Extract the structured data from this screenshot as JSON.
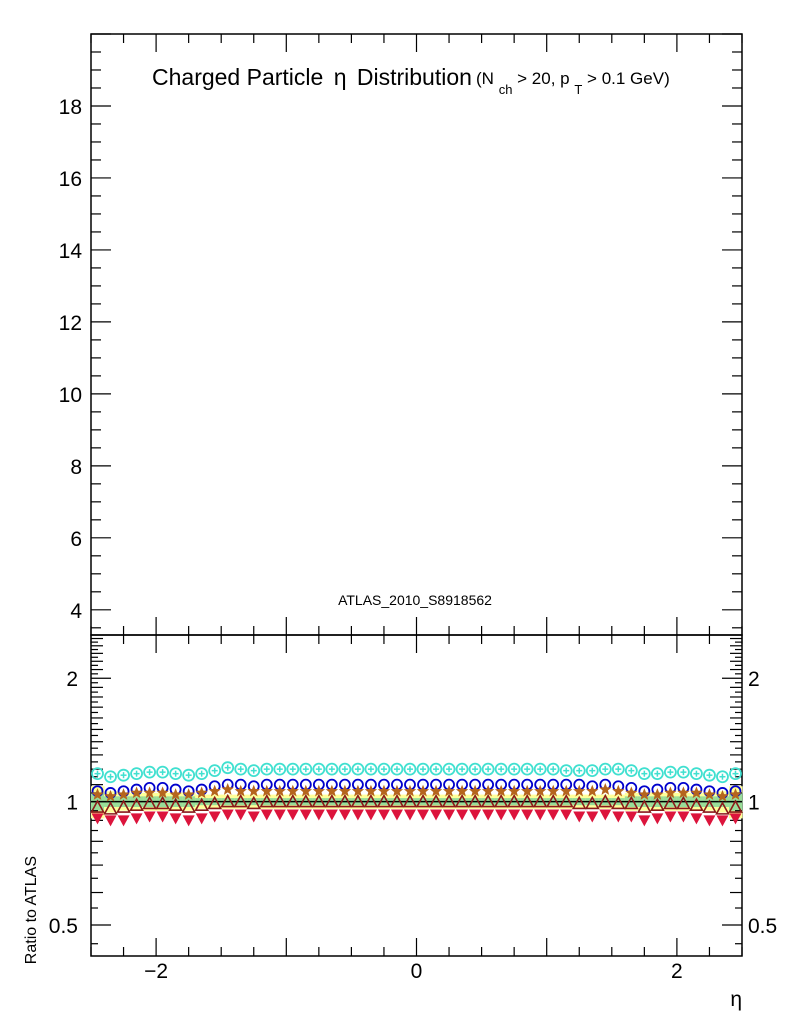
{
  "chart_data": [
    {
      "type": "scatter",
      "panel": "main",
      "title": "Charged Particle",
      "title_symbol": "η",
      "title_rest": "Distribution",
      "title_cut_open": "(N",
      "title_cut_sub1": "ch",
      "title_cut_mid": " > 20, p",
      "title_cut_sub2": "T",
      "title_cut_close": " > 0.1 GeV)",
      "annotation": "ATLAS_2010_S8918562",
      "xlim": [
        -2.5,
        2.5
      ],
      "ylim": [
        3.3,
        20.0
      ],
      "ytick_labels": [
        "4",
        "6",
        "8",
        "10",
        "12",
        "14",
        "16",
        "18"
      ],
      "ytick_values": [
        4,
        6,
        8,
        10,
        12,
        14,
        16,
        18
      ]
    },
    {
      "type": "scatter",
      "panel": "ratio",
      "ylabel": "Ratio to ATLAS",
      "xlabel": "η",
      "ylog": true,
      "xlim": [
        -2.5,
        2.5
      ],
      "ylim": [
        0.42,
        2.55
      ],
      "xtick_labels": [
        "−2",
        "0",
        "2"
      ],
      "xtick_values": [
        -2,
        0,
        2
      ],
      "ytick_labels": [
        "0.5",
        "1",
        "2"
      ],
      "ytick_values": [
        0.5,
        1,
        2
      ],
      "x": [
        -2.45,
        -2.35,
        -2.25,
        -2.15,
        -2.05,
        -1.95,
        -1.85,
        -1.75,
        -1.65,
        -1.55,
        -1.45,
        -1.35,
        -1.25,
        -1.15,
        -1.05,
        -0.95,
        -0.85,
        -0.75,
        -0.65,
        -0.55,
        -0.45,
        -0.35,
        -0.25,
        -0.15,
        -0.05,
        0.05,
        0.15,
        0.25,
        0.35,
        0.45,
        0.55,
        0.65,
        0.75,
        0.85,
        0.95,
        1.05,
        1.15,
        1.25,
        1.35,
        1.45,
        1.55,
        1.65,
        1.75,
        1.85,
        1.95,
        2.05,
        2.15,
        2.25,
        2.35,
        2.45
      ],
      "band": {
        "color": "#ffff99",
        "inner_color": "#99dd99",
        "outer_half_width": [
          0.09,
          0.06,
          0.05,
          0.05,
          0.05,
          0.05,
          0.05,
          0.05,
          0.04,
          0.04,
          0.04,
          0.04,
          0.04,
          0.04,
          0.04,
          0.04,
          0.04,
          0.04,
          0.04,
          0.04,
          0.04,
          0.04,
          0.04,
          0.04,
          0.04,
          0.04,
          0.04,
          0.04,
          0.04,
          0.04,
          0.04,
          0.04,
          0.04,
          0.04,
          0.04,
          0.04,
          0.04,
          0.04,
          0.04,
          0.04,
          0.04,
          0.05,
          0.05,
          0.05,
          0.05,
          0.05,
          0.05,
          0.05,
          0.06,
          0.09
        ],
        "inner_half_width": [
          0.05,
          0.03,
          0.03,
          0.03,
          0.03,
          0.03,
          0.03,
          0.03,
          0.02,
          0.02,
          0.02,
          0.02,
          0.02,
          0.02,
          0.02,
          0.02,
          0.02,
          0.02,
          0.02,
          0.02,
          0.02,
          0.02,
          0.02,
          0.02,
          0.02,
          0.02,
          0.02,
          0.02,
          0.02,
          0.02,
          0.02,
          0.02,
          0.02,
          0.02,
          0.02,
          0.02,
          0.02,
          0.02,
          0.02,
          0.02,
          0.02,
          0.03,
          0.03,
          0.03,
          0.03,
          0.03,
          0.03,
          0.03,
          0.03,
          0.05
        ]
      },
      "series": [
        {
          "marker": "circle-plus",
          "color": "#40e0d0",
          "values": [
            1.17,
            1.15,
            1.16,
            1.17,
            1.18,
            1.18,
            1.17,
            1.16,
            1.17,
            1.19,
            1.21,
            1.2,
            1.19,
            1.2,
            1.2,
            1.2,
            1.2,
            1.2,
            1.2,
            1.2,
            1.2,
            1.2,
            1.2,
            1.2,
            1.2,
            1.2,
            1.2,
            1.2,
            1.2,
            1.2,
            1.2,
            1.2,
            1.2,
            1.2,
            1.2,
            1.2,
            1.19,
            1.19,
            1.19,
            1.2,
            1.2,
            1.19,
            1.17,
            1.17,
            1.18,
            1.18,
            1.17,
            1.16,
            1.15,
            1.17
          ]
        },
        {
          "marker": "open-circle",
          "color": "#0000cc",
          "values": [
            1.06,
            1.05,
            1.06,
            1.07,
            1.08,
            1.08,
            1.07,
            1.06,
            1.07,
            1.09,
            1.1,
            1.1,
            1.09,
            1.1,
            1.1,
            1.1,
            1.1,
            1.1,
            1.1,
            1.1,
            1.1,
            1.1,
            1.1,
            1.1,
            1.1,
            1.1,
            1.1,
            1.1,
            1.1,
            1.1,
            1.1,
            1.1,
            1.1,
            1.1,
            1.1,
            1.1,
            1.1,
            1.1,
            1.09,
            1.1,
            1.09,
            1.08,
            1.06,
            1.07,
            1.08,
            1.08,
            1.07,
            1.06,
            1.05,
            1.06
          ]
        },
        {
          "marker": "star",
          "color": "#b5651d",
          "values": [
            1.04,
            1.03,
            1.04,
            1.05,
            1.05,
            1.05,
            1.04,
            1.04,
            1.05,
            1.06,
            1.07,
            1.06,
            1.06,
            1.06,
            1.06,
            1.06,
            1.06,
            1.06,
            1.06,
            1.06,
            1.06,
            1.06,
            1.06,
            1.06,
            1.06,
            1.06,
            1.06,
            1.06,
            1.06,
            1.06,
            1.06,
            1.06,
            1.06,
            1.06,
            1.06,
            1.06,
            1.06,
            1.06,
            1.06,
            1.07,
            1.06,
            1.05,
            1.04,
            1.04,
            1.05,
            1.05,
            1.05,
            1.04,
            1.03,
            1.04
          ]
        },
        {
          "marker": "open-triangle-up",
          "color": "#8b1a1a",
          "values": [
            0.97,
            0.96,
            0.97,
            0.98,
            0.99,
            0.99,
            0.98,
            0.97,
            0.98,
            0.99,
            1.0,
            1.0,
            0.99,
            1.0,
            1.0,
            1.0,
            1.0,
            1.0,
            1.0,
            1.0,
            1.0,
            1.0,
            1.0,
            1.0,
            1.0,
            1.0,
            1.0,
            1.0,
            1.0,
            1.0,
            1.0,
            1.0,
            1.0,
            1.0,
            1.0,
            1.0,
            1.0,
            0.99,
            0.99,
            1.0,
            0.99,
            0.99,
            0.97,
            0.98,
            0.99,
            0.99,
            0.98,
            0.97,
            0.96,
            0.97
          ]
        },
        {
          "marker": "filled-triangle-down",
          "color": "#dc143c",
          "values": [
            0.91,
            0.9,
            0.9,
            0.91,
            0.92,
            0.92,
            0.91,
            0.9,
            0.91,
            0.92,
            0.93,
            0.93,
            0.92,
            0.93,
            0.93,
            0.93,
            0.93,
            0.93,
            0.93,
            0.93,
            0.93,
            0.93,
            0.93,
            0.93,
            0.93,
            0.93,
            0.93,
            0.93,
            0.93,
            0.93,
            0.93,
            0.93,
            0.93,
            0.93,
            0.93,
            0.93,
            0.93,
            0.92,
            0.92,
            0.93,
            0.92,
            0.92,
            0.9,
            0.91,
            0.92,
            0.92,
            0.91,
            0.9,
            0.9,
            0.91
          ]
        }
      ]
    }
  ]
}
